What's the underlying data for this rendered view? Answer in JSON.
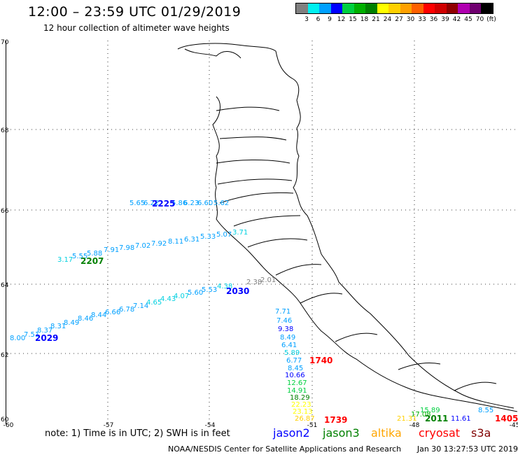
{
  "title": "12:00 – 23:59 UTC 01/29/2019",
  "subtitle": "12 hour collection of altimeter wave heights",
  "legend": {
    "colors": [
      "#808080",
      "#00f0f0",
      "#00a0ff",
      "#0000ff",
      "#00d040",
      "#00b000",
      "#008000",
      "#ffff00",
      "#ffd000",
      "#ffa000",
      "#ff6000",
      "#ff0000",
      "#d00000",
      "#900000",
      "#b000b0",
      "#700070",
      "#000000"
    ],
    "ticks": [
      "3",
      "6",
      "9",
      "12",
      "15",
      "18",
      "21",
      "24",
      "27",
      "30",
      "33",
      "36",
      "39",
      "42",
      "45",
      "70",
      "(ft)"
    ]
  },
  "axes": {
    "lat_labels": [
      "70",
      "68",
      "66",
      "64",
      "62",
      "60"
    ],
    "lon_labels": [
      "-60",
      "-57",
      "-54",
      "-51",
      "-48",
      "-45"
    ]
  },
  "note": "note:  1) Time is in UTC;  2) SWH is in feet",
  "satellites": [
    {
      "name": "jason2",
      "color": "#0000ff"
    },
    {
      "name": "jason3",
      "color": "#008000"
    },
    {
      "name": "altika",
      "color": "#ffa500"
    },
    {
      "name": "cryosat",
      "color": "#ff0000"
    },
    {
      "name": "s3a",
      "color": "#800000"
    }
  ],
  "footer": {
    "center": "NOAA/NESDIS Center for Satellite Applications and Research",
    "timestamp": "Jan 30 13:27:53 UTC 2019"
  },
  "track_labels": [
    {
      "text": "2225",
      "color": "#0000ff"
    },
    {
      "text": "2207",
      "color": "#008000"
    },
    {
      "text": "2030",
      "color": "#0000ff"
    },
    {
      "text": "2029",
      "color": "#0000ff"
    },
    {
      "text": "1740",
      "color": "#ff0000"
    },
    {
      "text": "1739",
      "color": "#ff0000"
    },
    {
      "text": "2011",
      "color": "#008000"
    },
    {
      "text": "1405",
      "color": "#ff0000"
    }
  ],
  "wave_heights": [
    {
      "text": "5.65",
      "color": "#00a0ff"
    },
    {
      "text": "6.22",
      "color": "#00a0ff"
    },
    {
      "text": "5.86",
      "color": "#00a0ff"
    },
    {
      "text": "6.23",
      "color": "#00a0ff"
    },
    {
      "text": "6.60",
      "color": "#00a0ff"
    },
    {
      "text": "5.62",
      "color": "#00a0ff"
    },
    {
      "text": "3.17",
      "color": "#00d0e0"
    },
    {
      "text": "5.55",
      "color": "#00a0ff"
    },
    {
      "text": "5.88",
      "color": "#00a0ff"
    },
    {
      "text": "7.91",
      "color": "#00a0ff"
    },
    {
      "text": "7.98",
      "color": "#00a0ff"
    },
    {
      "text": "7.02",
      "color": "#00a0ff"
    },
    {
      "text": "7.92",
      "color": "#00a0ff"
    },
    {
      "text": "8.11",
      "color": "#00a0ff"
    },
    {
      "text": "6.31",
      "color": "#00a0ff"
    },
    {
      "text": "5.33",
      "color": "#00a0ff"
    },
    {
      "text": "5.07",
      "color": "#00a0ff"
    },
    {
      "text": "3.71",
      "color": "#00d0e0"
    },
    {
      "text": "2.38",
      "color": "#808080"
    },
    {
      "text": "2.01",
      "color": "#808080"
    },
    {
      "text": "8.00",
      "color": "#00a0ff"
    },
    {
      "text": "7.51",
      "color": "#00a0ff"
    },
    {
      "text": "8.37",
      "color": "#00a0ff"
    },
    {
      "text": "8.31",
      "color": "#00a0ff"
    },
    {
      "text": "8.49",
      "color": "#00a0ff"
    },
    {
      "text": "8.46",
      "color": "#00a0ff"
    },
    {
      "text": "8.44",
      "color": "#00a0ff"
    },
    {
      "text": "6.66",
      "color": "#00a0ff"
    },
    {
      "text": "6.78",
      "color": "#00a0ff"
    },
    {
      "text": "7.14",
      "color": "#00a0ff"
    },
    {
      "text": "4.65",
      "color": "#00d0e0"
    },
    {
      "text": "4.43",
      "color": "#00d0e0"
    },
    {
      "text": "4.07",
      "color": "#00d0e0"
    },
    {
      "text": "5.60",
      "color": "#00a0ff"
    },
    {
      "text": "5.53",
      "color": "#00a0ff"
    },
    {
      "text": "4.38",
      "color": "#00d0e0"
    },
    {
      "text": "7.71",
      "color": "#00a0ff"
    },
    {
      "text": "7.46",
      "color": "#00a0ff"
    },
    {
      "text": "9.38",
      "color": "#0000ff"
    },
    {
      "text": "8.49",
      "color": "#00a0ff"
    },
    {
      "text": "6.41",
      "color": "#00a0ff"
    },
    {
      "text": "5.89",
      "color": "#00d0e0"
    },
    {
      "text": "6.77",
      "color": "#00a0ff"
    },
    {
      "text": "8.45",
      "color": "#00a0ff"
    },
    {
      "text": "10.66",
      "color": "#0000ff"
    },
    {
      "text": "12.67",
      "color": "#00d040"
    },
    {
      "text": "14.91",
      "color": "#00d040"
    },
    {
      "text": "18.29",
      "color": "#008000"
    },
    {
      "text": "22.23",
      "color": "#ffff00"
    },
    {
      "text": "23.13",
      "color": "#ffff00"
    },
    {
      "text": "26.87",
      "color": "#ffd000"
    },
    {
      "text": "15.89",
      "color": "#00d040"
    },
    {
      "text": "17.08",
      "color": "#00b000"
    },
    {
      "text": "21.31",
      "color": "#ffd000"
    },
    {
      "text": "11.61",
      "color": "#0000ff"
    },
    {
      "text": "8.55",
      "color": "#00a0ff"
    }
  ]
}
